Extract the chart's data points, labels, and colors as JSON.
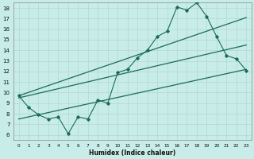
{
  "xlabel": "Humidex (Indice chaleur)",
  "ylabel": "",
  "background_color": "#c8ece8",
  "grid_color": "#b0d8d4",
  "line_color": "#1a6b5a",
  "xlim": [
    -0.5,
    23.5
  ],
  "ylim": [
    5.5,
    18.5
  ],
  "xticks": [
    0,
    1,
    2,
    3,
    4,
    5,
    6,
    7,
    8,
    9,
    10,
    11,
    12,
    13,
    14,
    15,
    16,
    17,
    18,
    19,
    20,
    21,
    22,
    23
  ],
  "yticks": [
    6,
    7,
    8,
    9,
    10,
    11,
    12,
    13,
    14,
    15,
    16,
    17,
    18
  ],
  "main_line_x": [
    0,
    1,
    2,
    3,
    4,
    5,
    6,
    7,
    8,
    9,
    10,
    11,
    12,
    13,
    14,
    15,
    16,
    17,
    18,
    19,
    20,
    21,
    22,
    23
  ],
  "main_line_y": [
    9.7,
    8.6,
    7.9,
    7.5,
    7.7,
    6.1,
    7.7,
    7.5,
    9.3,
    9.0,
    11.9,
    12.2,
    13.3,
    14.0,
    15.3,
    15.8,
    18.1,
    17.8,
    18.5,
    17.2,
    15.3,
    13.5,
    13.2,
    12.1
  ],
  "upper_line_x": [
    0,
    23
  ],
  "upper_line_y": [
    9.7,
    17.1
  ],
  "lower_line_x": [
    0,
    23
  ],
  "lower_line_y": [
    7.5,
    12.2
  ],
  "mid_line_x": [
    0,
    23
  ],
  "mid_line_y": [
    9.5,
    14.5
  ]
}
